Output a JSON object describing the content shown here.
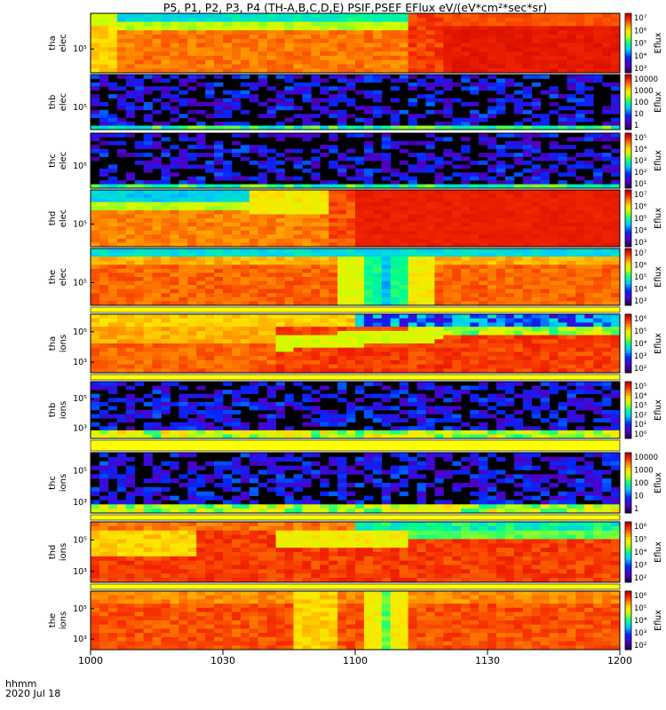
{
  "chart_data": {
    "type": "heatmap",
    "title": "P5, P1, P2, P3, P4  (TH-A,B,C,D,E)  PSIF,PSEF  EFlux  eV/(eV*cm²*sec*sr)",
    "xlabel": "hhmm",
    "date_label": "2020 Jul 18",
    "x_ticks": [
      "1000",
      "1030",
      "1100",
      "1130",
      "1200"
    ],
    "x_range_minutes": [
      0,
      120
    ],
    "colorbar_label": "Eflux",
    "panels": [
      {
        "probe": "tha",
        "species": "elec",
        "yticks": [
          "10⁵"
        ],
        "cbar_ticks": [
          "10⁷",
          "10⁶",
          "10⁵",
          "10⁴",
          "10³"
        ],
        "profile": "tha_elec"
      },
      {
        "probe": "thb",
        "species": "elec",
        "yticks": [
          "10⁵"
        ],
        "cbar_ticks": [
          "10000",
          "1000",
          "100",
          "10",
          "1"
        ],
        "profile": "sparse"
      },
      {
        "probe": "thc",
        "species": "elec",
        "yticks": [
          "10⁵"
        ],
        "cbar_ticks": [
          "10⁵",
          "10⁴",
          "10³",
          "10²",
          "10¹"
        ],
        "profile": "sparse"
      },
      {
        "probe": "thd",
        "species": "elec",
        "yticks": [
          "10⁵"
        ],
        "cbar_ticks": [
          "10⁷",
          "10⁶",
          "10⁵",
          "10⁴",
          "10³"
        ],
        "profile": "thd_elec"
      },
      {
        "probe": "the",
        "species": "elec",
        "yticks": [
          "10⁵"
        ],
        "cbar_ticks": [
          "10⁷",
          "10⁶",
          "10⁵",
          "10⁴",
          "10³"
        ],
        "profile": "the_elec"
      },
      {
        "probe": "tha",
        "species": "ions",
        "yticks": [
          "10⁵",
          "10³"
        ],
        "cbar_ticks": [
          "10⁶",
          "10⁵",
          "10⁴",
          "10³",
          "10²"
        ],
        "profile": "tha_ions"
      },
      {
        "probe": "thb",
        "species": "ions",
        "yticks": [
          "10⁵",
          "10³"
        ],
        "cbar_ticks": [
          "10⁵",
          "10⁴",
          "10³",
          "10²",
          "10¹",
          "10⁰"
        ],
        "profile": "sparse_ions"
      },
      {
        "probe": "thc",
        "species": "ions",
        "yticks": [
          "10⁵",
          "10³"
        ],
        "cbar_ticks": [
          "10000",
          "1000",
          "100",
          "10",
          "1"
        ],
        "profile": "sparse_ions"
      },
      {
        "probe": "thd",
        "species": "ions",
        "yticks": [
          "10⁵",
          "10³"
        ],
        "cbar_ticks": [
          "10⁶",
          "10⁵",
          "10⁴",
          "10³",
          "10²"
        ],
        "profile": "thd_ions"
      },
      {
        "probe": "the",
        "species": "ions",
        "yticks": [
          "10⁵",
          "10³"
        ],
        "cbar_ticks": [
          "10⁶",
          "10⁵",
          "10⁴",
          "10³",
          "10²"
        ],
        "profile": "the_ions"
      }
    ]
  }
}
